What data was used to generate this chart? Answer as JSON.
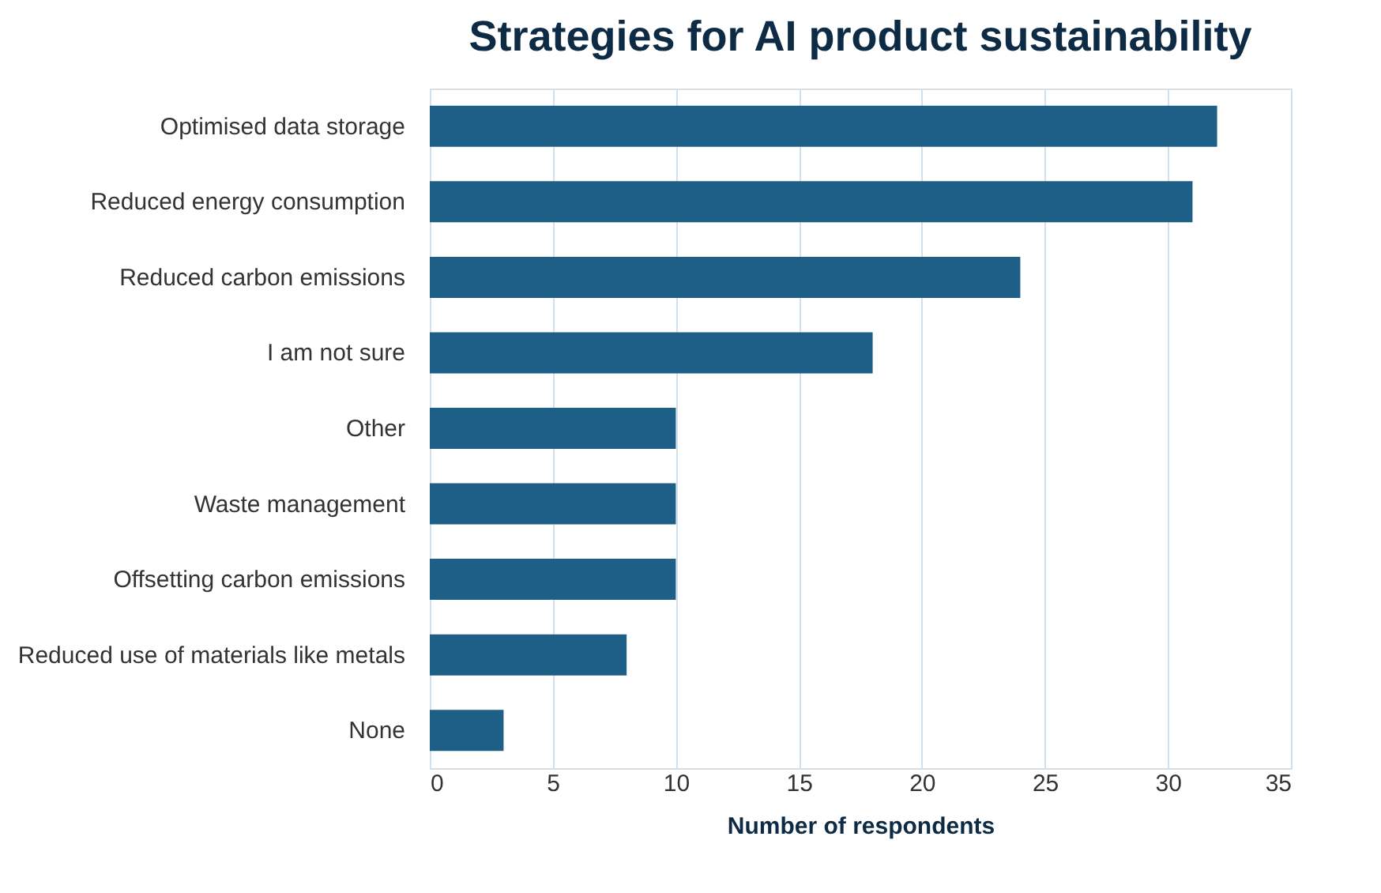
{
  "chart_data": {
    "type": "bar",
    "orientation": "horizontal",
    "title": "Strategies for AI product sustainability",
    "xlabel": "Number of respondents",
    "categories": [
      "Optimised data storage",
      "Reduced energy consumption",
      "Reduced carbon emissions",
      "I am not sure",
      "Other",
      "Waste management",
      "Offsetting carbon emissions",
      "Reduced use of materials like metals",
      "None"
    ],
    "values": [
      32,
      31,
      24,
      18,
      10,
      10,
      10,
      8,
      3
    ],
    "color": "#1d5f86",
    "xlim": [
      0,
      35
    ],
    "xticks": [
      0,
      5,
      10,
      15,
      20,
      25,
      30,
      35
    ],
    "grid": "x"
  }
}
